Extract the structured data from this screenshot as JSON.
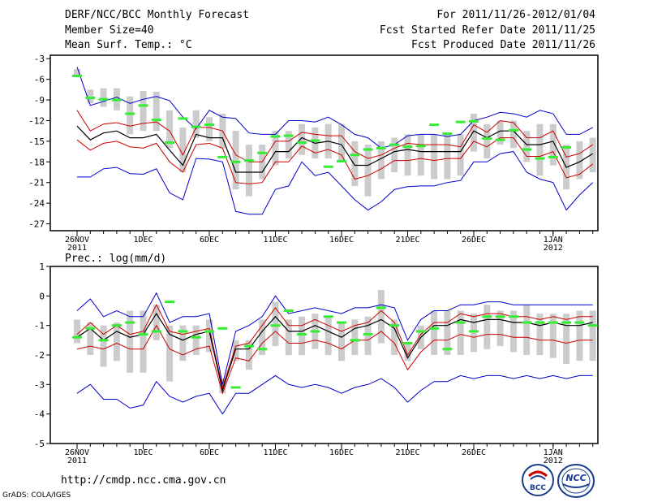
{
  "header": {
    "title": "DERF/NCC/BCC Monthly Forecast",
    "member_size": "Member Size=40",
    "variable": "Mean Surf. Temp.: °C",
    "forecast_period": "For 2011/11/26-2012/01/04",
    "start_date": "Fcst Started Refer Date 2011/11/25",
    "produced_date": "Fcst Produced Date 2011/11/26"
  },
  "footer": {
    "url": "http://cmdp.ncc.cma.gov.cn",
    "credit": "GrADS: COLA/IGES",
    "logo_bcc": "BCC",
    "logo_ncc": "NCC"
  },
  "colors": {
    "envelope": "#0000cc",
    "quartile": "#cc0000",
    "median": "#000000",
    "box": "#cccccc",
    "mean_marker": "#33ee33"
  },
  "chart_data": [
    {
      "type": "line",
      "name": "temperature",
      "ylabel": "Mean Surf. Temp.: °C",
      "ylim": [
        -28,
        -2.5
      ],
      "yticks": [
        -3,
        -6,
        -9,
        -12,
        -15,
        -18,
        -21,
        -24,
        -27
      ],
      "x": [
        0,
        1,
        2,
        3,
        4,
        5,
        6,
        7,
        8,
        9,
        10,
        11,
        12,
        13,
        14,
        15,
        16,
        17,
        18,
        19,
        20,
        21,
        22,
        23,
        24,
        25,
        26,
        27,
        28,
        29,
        30,
        31,
        32,
        33,
        34,
        35,
        36,
        37,
        38,
        39
      ],
      "xtick_positions": [
        0,
        5,
        10,
        15,
        20,
        25,
        30,
        36
      ],
      "xtick_labels": [
        "26NOV",
        "1DEC",
        "6DEC",
        "11DEC",
        "16DEC",
        "21DEC",
        "26DEC",
        "1JAN"
      ],
      "year_labels": [
        {
          "at": 0,
          "text": "2011"
        },
        {
          "at": 36,
          "text": "2012"
        }
      ],
      "series": [
        {
          "name": "max",
          "values": [
            -4.2,
            -9.8,
            -9.2,
            -8.6,
            -9.5,
            -8.9,
            -8.5,
            -9.1,
            -11.5,
            -13.2,
            -10.5,
            -11.5,
            -11.7,
            -13.8,
            -14.0,
            -14.0,
            -12.0,
            -12.0,
            -12.2,
            -11.5,
            -12.6,
            -14.0,
            -14.5,
            -16.0,
            -15.5,
            -14.2,
            -14.0,
            -14.0,
            -14.3,
            -14.0,
            -12.0,
            -11.5,
            -10.8,
            -11.0,
            -11.5,
            -10.5,
            -11.0,
            -14.0,
            -14.0,
            -13.0
          ]
        },
        {
          "name": "upper",
          "values": [
            -10.5,
            -13.5,
            -12.5,
            -12.3,
            -12.8,
            -12.4,
            -12.2,
            -13.5,
            -17.0,
            -13.0,
            -13.0,
            -13.5,
            -17.0,
            -18.0,
            -18.0,
            -15.0,
            -15.0,
            -13.7,
            -14.0,
            -14.2,
            -14.2,
            -16.5,
            -17.5,
            -17.0,
            -16.0,
            -15.3,
            -15.5,
            -15.5,
            -15.5,
            -15.8,
            -12.6,
            -13.7,
            -12.0,
            -12.3,
            -14.5,
            -14.5,
            -13.5,
            -17.3,
            -16.8,
            -15.5
          ]
        },
        {
          "name": "median",
          "values": [
            -12.8,
            -14.8,
            -13.8,
            -13.5,
            -14.5,
            -14.5,
            -14.0,
            -16.3,
            -18.5,
            -14.0,
            -14.5,
            -14.5,
            -19.5,
            -19.5,
            -19.5,
            -16.5,
            -16.5,
            -14.5,
            -15.3,
            -15.0,
            -15.5,
            -18.5,
            -18.5,
            -17.5,
            -16.5,
            -16.2,
            -16.5,
            -16.5,
            -16.5,
            -16.5,
            -13.5,
            -14.5,
            -13.5,
            -13.5,
            -15.5,
            -15.5,
            -15.0,
            -18.8,
            -18.0,
            -16.8
          ]
        },
        {
          "name": "lower",
          "values": [
            -14.8,
            -16.3,
            -15.3,
            -15.0,
            -15.8,
            -16.0,
            -15.3,
            -18.0,
            -19.5,
            -15.5,
            -15.3,
            -16.0,
            -21.0,
            -21.2,
            -21.0,
            -18.0,
            -18.0,
            -15.7,
            -16.7,
            -16.2,
            -17.0,
            -20.5,
            -20.0,
            -19.0,
            -17.8,
            -17.8,
            -17.5,
            -17.8,
            -17.5,
            -17.5,
            -15.0,
            -15.8,
            -14.5,
            -14.5,
            -17.2,
            -17.2,
            -16.5,
            -20.3,
            -19.8,
            -18.3
          ]
        },
        {
          "name": "min",
          "values": [
            -20.2,
            -20.2,
            -19.0,
            -18.8,
            -19.7,
            -19.8,
            -19.0,
            -22.5,
            -23.5,
            -17.5,
            -17.6,
            -18.0,
            -25.2,
            -25.6,
            -25.6,
            -22.0,
            -21.5,
            -18.0,
            -20.0,
            -19.5,
            -21.5,
            -23.5,
            -25.0,
            -23.8,
            -22.0,
            -21.6,
            -21.5,
            -21.5,
            -21.0,
            -20.7,
            -18.0,
            -18.0,
            -16.8,
            -16.5,
            -19.5,
            -20.5,
            -21.0,
            -25.0,
            -22.8,
            -21.0
          ]
        }
      ],
      "box_q1": [
        -4.5,
        -7.5,
        -7.3,
        -7.3,
        -8.5,
        -7.7,
        -7.8,
        -10.5,
        -13.0,
        -10.5,
        -11.5,
        -11.0,
        -13.5,
        -15.5,
        -15.5,
        -13.5,
        -13.5,
        -12.5,
        -13.0,
        -12.5,
        -12.5,
        -15.0,
        -15.5,
        -15.0,
        -14.5,
        -14.0,
        -14.0,
        -14.0,
        -14.0,
        -14.0,
        -11.0,
        -12.5,
        -12.0,
        -12.0,
        -13.5,
        -12.5,
        -12.5,
        -15.5,
        -15.0,
        -14.5
      ],
      "box_q3": [
        -5.5,
        -9.5,
        -10.0,
        -10.5,
        -14.0,
        -13.5,
        -13.5,
        -16.0,
        -19.5,
        -14.5,
        -15.0,
        -16.0,
        -22.0,
        -23.0,
        -20.5,
        -18.5,
        -17.5,
        -17.0,
        -17.5,
        -17.5,
        -18.0,
        -21.5,
        -23.0,
        -20.5,
        -19.5,
        -20.0,
        -20.0,
        -20.5,
        -20.5,
        -20.0,
        -16.5,
        -17.5,
        -15.5,
        -16.0,
        -18.0,
        -20.0,
        -18.5,
        -22.0,
        -20.5,
        -19.5
      ],
      "mean_markers": [
        -5.5,
        -8.7,
        -8.9,
        -9.0,
        -11.0,
        -9.8,
        -11.9,
        -15.2,
        -11.7,
        -12.9,
        -12.6,
        -17.3,
        -18.0,
        -17.8,
        -16.7,
        -14.3,
        -14.2,
        -15.2,
        -14.9,
        -18.7,
        -17.9,
        -17.0,
        -16.2,
        -16.0,
        -15.5,
        -15.8,
        -15.7,
        -12.6,
        -13.9,
        -12.2,
        -12.1,
        -14.6,
        -14.8,
        -13.4,
        -16.2,
        -17.5,
        -17.3,
        -15.9,
        null,
        null
      ]
    },
    {
      "type": "line",
      "name": "precipitation",
      "ylabel": "Prec.: log(mm/d)",
      "ylim": [
        -5,
        1
      ],
      "yticks": [
        1,
        0,
        -1,
        -2,
        -3,
        -4,
        -5
      ],
      "x": [
        0,
        1,
        2,
        3,
        4,
        5,
        6,
        7,
        8,
        9,
        10,
        11,
        12,
        13,
        14,
        15,
        16,
        17,
        18,
        19,
        20,
        21,
        22,
        23,
        24,
        25,
        26,
        27,
        28,
        29,
        30,
        31,
        32,
        33,
        34,
        35,
        36,
        37,
        38,
        39
      ],
      "xtick_positions": [
        0,
        5,
        10,
        15,
        20,
        25,
        30,
        36
      ],
      "xtick_labels": [
        "26NOV",
        "1DEC",
        "6DEC",
        "11DEC",
        "16DEC",
        "21DEC",
        "26DEC",
        "1JAN"
      ],
      "year_labels": [
        {
          "at": 0,
          "text": "2011"
        },
        {
          "at": 36,
          "text": "2012"
        }
      ],
      "series": [
        {
          "name": "max",
          "values": [
            -0.5,
            -0.1,
            -0.7,
            -0.5,
            -0.7,
            -0.7,
            0.1,
            -0.9,
            -0.7,
            -0.7,
            -0.6,
            -3.0,
            -1.2,
            -1.0,
            -0.7,
            0.0,
            -0.6,
            -0.5,
            -0.4,
            -0.5,
            -0.6,
            -0.4,
            -0.4,
            -0.3,
            -0.4,
            -1.5,
            -0.8,
            -0.5,
            -0.5,
            -0.3,
            -0.3,
            -0.2,
            -0.2,
            -0.3,
            -0.3,
            -0.3,
            -0.3,
            -0.3,
            -0.3,
            -0.3
          ]
        },
        {
          "name": "upper",
          "values": [
            -1.3,
            -0.9,
            -1.3,
            -1.0,
            -1.3,
            -1.2,
            -0.3,
            -1.2,
            -1.3,
            -1.2,
            -1.1,
            -3.1,
            -1.7,
            -1.6,
            -1.0,
            -0.4,
            -1.0,
            -1.0,
            -0.8,
            -1.0,
            -1.2,
            -1.0,
            -0.9,
            -0.5,
            -0.9,
            -2.0,
            -1.3,
            -0.9,
            -0.9,
            -0.6,
            -0.7,
            -0.6,
            -0.6,
            -0.7,
            -0.7,
            -0.8,
            -0.7,
            -0.8,
            -0.7,
            -0.7
          ]
        },
        {
          "name": "median",
          "values": [
            -1.4,
            -1.1,
            -1.5,
            -1.2,
            -1.4,
            -1.3,
            -0.6,
            -1.3,
            -1.5,
            -1.3,
            -1.2,
            -3.2,
            -1.8,
            -1.8,
            -1.2,
            -0.7,
            -1.2,
            -1.2,
            -1.0,
            -1.2,
            -1.4,
            -1.1,
            -1.0,
            -0.8,
            -1.1,
            -2.1,
            -1.4,
            -1.0,
            -1.0,
            -0.8,
            -0.9,
            -0.8,
            -0.8,
            -0.9,
            -0.9,
            -1.0,
            -0.9,
            -1.0,
            -1.0,
            -0.9
          ]
        },
        {
          "name": "lower",
          "values": [
            -1.8,
            -1.7,
            -1.8,
            -1.6,
            -1.8,
            -1.8,
            -1.0,
            -1.8,
            -2.0,
            -1.8,
            -1.7,
            -3.3,
            -2.1,
            -2.2,
            -1.6,
            -1.2,
            -1.6,
            -1.6,
            -1.5,
            -1.6,
            -1.8,
            -1.5,
            -1.5,
            -1.2,
            -1.6,
            -2.5,
            -1.9,
            -1.5,
            -1.5,
            -1.3,
            -1.4,
            -1.3,
            -1.3,
            -1.4,
            -1.4,
            -1.5,
            -1.5,
            -1.6,
            -1.5,
            -1.5
          ]
        },
        {
          "name": "min",
          "values": [
            -3.3,
            -3.0,
            -3.5,
            -3.5,
            -3.8,
            -3.7,
            -2.9,
            -3.4,
            -3.6,
            -3.4,
            -3.3,
            -4.0,
            -3.3,
            -3.3,
            -3.0,
            -2.7,
            -3.0,
            -3.1,
            -3.0,
            -3.1,
            -3.3,
            -3.1,
            -3.0,
            -2.8,
            -3.1,
            -3.6,
            -3.2,
            -2.9,
            -2.9,
            -2.7,
            -2.8,
            -2.7,
            -2.7,
            -2.8,
            -2.7,
            -2.8,
            -2.7,
            -2.8,
            -2.7,
            -2.7
          ]
        }
      ],
      "box_q1": [
        -0.8,
        -0.9,
        -1.0,
        -0.9,
        -0.5,
        -0.5,
        -0.3,
        -1.0,
        -1.0,
        -1.0,
        -0.8,
        -2.8,
        -1.5,
        -1.5,
        -0.8,
        -0.2,
        -0.8,
        -0.7,
        -0.6,
        -0.7,
        -0.9,
        -0.8,
        -0.7,
        0.2,
        -0.8,
        -1.6,
        -1.0,
        -0.5,
        -0.5,
        -0.5,
        -0.6,
        -0.3,
        -0.5,
        -0.5,
        -0.3,
        -0.6,
        -0.6,
        -0.6,
        -0.5,
        -0.5
      ],
      "box_q3": [
        -1.6,
        -2.0,
        -2.4,
        -2.2,
        -2.6,
        -2.6,
        -1.5,
        -2.9,
        -2.2,
        -2.0,
        -1.9,
        -3.3,
        -2.2,
        -2.5,
        -2.0,
        -1.7,
        -2.0,
        -2.0,
        -1.8,
        -2.0,
        -2.2,
        -2.0,
        -2.0,
        -1.6,
        -2.0,
        -2.2,
        -1.8,
        -2.0,
        -2.0,
        -2.0,
        -1.9,
        -1.8,
        -1.7,
        -1.9,
        -2.0,
        -2.0,
        -2.1,
        -2.3,
        -2.2,
        -2.2
      ],
      "mean_markers": [
        -1.4,
        -1.1,
        -1.5,
        -1.0,
        -0.9,
        -1.3,
        -1.2,
        -0.2,
        -1.2,
        -1.4,
        -1.2,
        -1.1,
        -3.1,
        -1.7,
        -1.8,
        -1.0,
        -0.5,
        -1.3,
        -1.2,
        -0.7,
        -0.9,
        -1.5,
        -1.3,
        -0.4,
        -1.0,
        -1.6,
        -1.2,
        -1.1,
        -1.8,
        -0.9,
        -1.2,
        -0.7,
        -0.7,
        -0.7,
        -0.9,
        -0.9,
        -0.9,
        -0.9,
        -0.9,
        -1.0
      ]
    }
  ]
}
